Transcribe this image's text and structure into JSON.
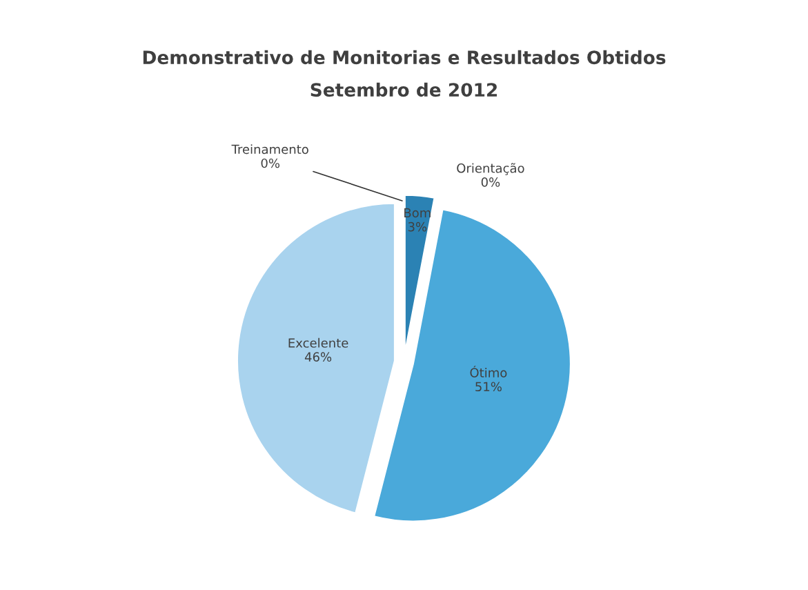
{
  "chart_data": {
    "type": "pie",
    "title": "Demonstrativo de Monitorias e Resultados Obtidos",
    "subtitle": "Setembro de 2012",
    "categories": [
      "Bom",
      "Ótimo",
      "Excelente",
      "Treinamento",
      "Orientação"
    ],
    "values": [
      3,
      51,
      46,
      0,
      0
    ],
    "value_labels": [
      "3%",
      "51%",
      "46%",
      "0%",
      "0%"
    ],
    "colors": [
      "#2b82b4",
      "#4aa9da",
      "#a9d3ee",
      "#6fb6de",
      "#1f6f9c"
    ],
    "legend": false
  }
}
